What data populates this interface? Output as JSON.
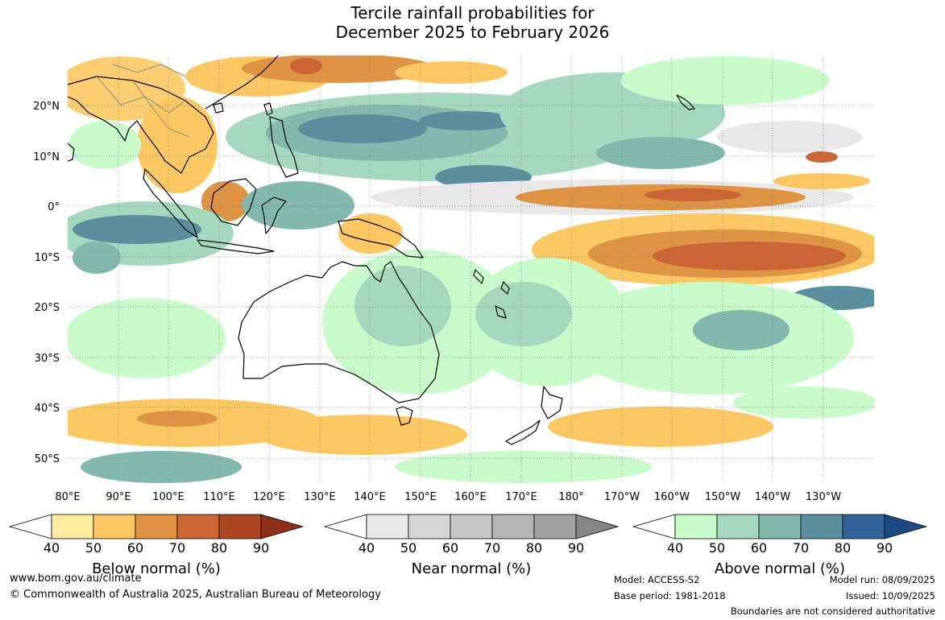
{
  "title": {
    "line1": "Tercile rainfall probabilities for",
    "line2": "December 2025 to February 2026"
  },
  "map": {
    "lat_labels": [
      "20°N",
      "10°N",
      "0°",
      "10°S",
      "20°S",
      "30°S",
      "40°S",
      "50°S"
    ],
    "lon_labels": [
      "80°E",
      "90°E",
      "100°E",
      "110°E",
      "120°E",
      "130°E",
      "140°E",
      "150°E",
      "160°E",
      "170°E",
      "180°",
      "170°W",
      "160°W",
      "150°W",
      "140°W",
      "130°W"
    ],
    "colors": {
      "ocean_bg": "#ffffff",
      "coastline": "#000000",
      "border": "#8c8c8c",
      "grid": "#888888"
    }
  },
  "legends": [
    {
      "name": "below",
      "title": "Below normal (%)",
      "ticks": [
        "40",
        "50",
        "60",
        "70",
        "80",
        "90"
      ],
      "colors": [
        "#ffeaa0",
        "#fdc863",
        "#df9345",
        "#cc6536",
        "#ad4623",
        "#8d2f1a"
      ]
    },
    {
      "name": "near",
      "title": "Near normal (%)",
      "ticks": [
        "40",
        "50",
        "60",
        "70",
        "80",
        "90"
      ],
      "colors": [
        "#e8e8e8",
        "#d6d6d6",
        "#c6c6c6",
        "#b5b5b5",
        "#a3a3a3",
        "#868686"
      ]
    },
    {
      "name": "above",
      "title": "Above normal (%)",
      "ticks": [
        "40",
        "50",
        "60",
        "70",
        "80",
        "90"
      ],
      "colors": [
        "#c9fbcb",
        "#a5d8bf",
        "#83b8ae",
        "#5b8f9e",
        "#32649b",
        "#1b4a82"
      ]
    }
  ],
  "footer": {
    "website": "www.bom.gov.au/climate",
    "copyright": "© Commonwealth of Australia 2025, Australian Bureau of Meteorology",
    "model": "Model: ACCESS-S2",
    "base_period": "Base period: 1981-2018",
    "model_run": "Model run: 08/09/2025",
    "issued": "Issued: 10/09/2025",
    "disclaimer": "Boundaries are not considered authoritative"
  }
}
